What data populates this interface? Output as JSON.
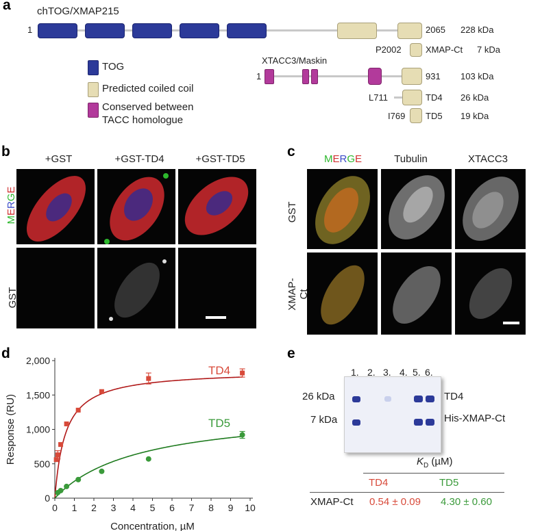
{
  "panel_a": {
    "label": "a",
    "chtog_title": "chTOG/XMAP215",
    "chtog_start": "1",
    "chtog_end": "2065",
    "chtog_mass": "228 kDa",
    "xmapct_start": "P2002",
    "xmapct_name": "XMAP-Ct",
    "xmapct_mass": "7 kDa",
    "xtacc_title": "XTACC3/Maskin",
    "xtacc_start": "1",
    "xtacc_end": "931",
    "xtacc_mass": "103 kDa",
    "td4_start": "L711",
    "td4_name": "TD4",
    "td4_mass": "26 kDa",
    "td5_start": "I769",
    "td5_name": "TD5",
    "td5_mass": "19 kDa",
    "legend": {
      "tog": "TOG",
      "coiled": "Predicted coiled coil",
      "conserved_line1": "Conserved between",
      "conserved_line2": "TACC homologue"
    },
    "colors": {
      "tog": "#2c3a99",
      "coiled": "#e6ddb4",
      "conserved": "#b23a9b"
    }
  },
  "panel_b": {
    "label": "b",
    "col1": "+GST",
    "col2": "+GST-TD4",
    "col3": "+GST-TD5",
    "row1_letters": [
      "M",
      "E",
      "R",
      "G",
      "E"
    ],
    "row1_colors": [
      "#2db82d",
      "#d03030",
      "#3b4bc8",
      "#2db82d",
      "#d03030"
    ],
    "row2": "GST"
  },
  "panel_c": {
    "label": "c",
    "col1_letters": [
      "M",
      "E",
      "R",
      "G",
      "E"
    ],
    "col1_colors": [
      "#2db82d",
      "#d03030",
      "#3b4bc8",
      "#2db82d",
      "#d03030"
    ],
    "col2": "Tubulin",
    "col3": "XTACC3",
    "row1": "GST",
    "row2": "XMAP-Ct"
  },
  "panel_d": {
    "label": "d"
  },
  "chart_data": {
    "type": "scatter",
    "xlabel": "Concentration, µM",
    "ylabel": "Response (RU)",
    "xlim": [
      0,
      10
    ],
    "ylim": [
      0,
      2000
    ],
    "xticks": [
      "0",
      "1",
      "2",
      "3",
      "4",
      "5",
      "6",
      "7",
      "8",
      "9",
      "10"
    ],
    "yticks": [
      "0",
      "500",
      "1,000",
      "1,500",
      "2,000"
    ],
    "series": [
      {
        "name": "TD4",
        "color": "#d84a3a",
        "x": [
          0.075,
          0.15,
          0.3,
          0.6,
          1.2,
          2.4,
          4.8,
          9.6
        ],
        "y": [
          560,
          630,
          780,
          1080,
          1280,
          1550,
          1740,
          1820
        ],
        "yerr": [
          0,
          60,
          0,
          0,
          0,
          0,
          80,
          60
        ],
        "fit_kd": 0.54,
        "fit_bmax": 1860
      },
      {
        "name": "TD5",
        "color": "#3a9a3a",
        "x": [
          0.15,
          0.3,
          0.6,
          1.2,
          2.4,
          4.8,
          9.6
        ],
        "y": [
          80,
          110,
          170,
          270,
          390,
          570,
          920
        ],
        "yerr": [
          0,
          0,
          0,
          0,
          0,
          0,
          50
        ],
        "fit_kd": 4.3,
        "fit_bmax": 1300
      }
    ]
  },
  "panel_e": {
    "label": "e",
    "lanes": [
      "1.",
      "2.",
      "3.",
      "4.",
      "5.",
      "6."
    ],
    "mw_top": "26 kDa",
    "mw_bottom": "7 kDa",
    "band_top": "TD4",
    "band_bottom": "His-XMAP-Ct",
    "kd_title_main": "K",
    "kd_title_sub": "D",
    "kd_title_unit": "(µM)",
    "col_td4": "TD4",
    "col_td5": "TD5",
    "row_name": "XMAP-Ct",
    "val_td4": "0.54 ± 0.09",
    "val_td5": "4.30 ± 0.60",
    "color_td4": "#d84a3a",
    "color_td5": "#3a9a3a"
  }
}
